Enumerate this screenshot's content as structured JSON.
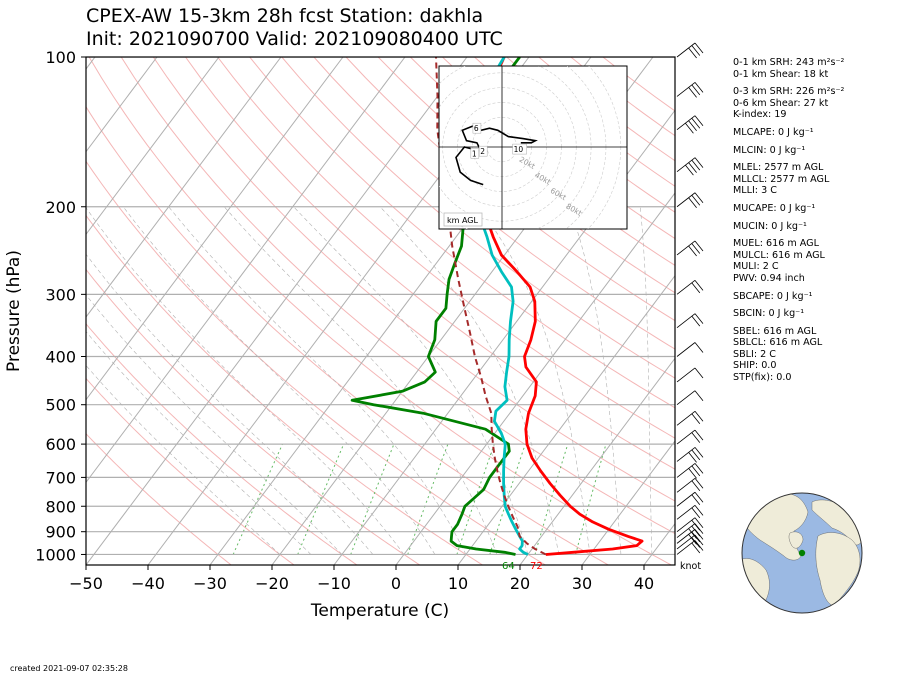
{
  "title_line1": "CPEX-AW 15-3km  28h fcst  Station: dakhla",
  "title_line2": "Init: 2021090700  Valid: 202109080400 UTC",
  "created": "created 2021-09-07 02:35:28",
  "indices": [
    {
      "label": "0-1 km SRH: 243 m²s⁻²",
      "gap": false
    },
    {
      "label": "0-1 km Shear: 18 kt",
      "gap": false
    },
    {
      "label": "0-3 km SRH: 226 m²s⁻²",
      "gap": true
    },
    {
      "label": "0-6 km Shear: 27 kt",
      "gap": false
    },
    {
      "label": "K-index: 19",
      "gap": false
    },
    {
      "label": "MLCAPE: 0 J kg⁻¹",
      "gap": true
    },
    {
      "label": "MLCIN: 0 J kg⁻¹",
      "gap": true
    },
    {
      "label": "MLEL: 2577 m AGL",
      "gap": true
    },
    {
      "label": "MLLCL: 2577 m AGL",
      "gap": false
    },
    {
      "label": "MLLI: 3 C",
      "gap": false
    },
    {
      "label": "MUCAPE: 0 J kg⁻¹",
      "gap": true
    },
    {
      "label": "MUCIN: 0 J kg⁻¹",
      "gap": true
    },
    {
      "label": "MUEL: 616 m AGL",
      "gap": true
    },
    {
      "label": "MULCL: 616 m AGL",
      "gap": false
    },
    {
      "label": "MULI: 2 C",
      "gap": false
    },
    {
      "label": "PWV: 0.94 inch",
      "gap": false
    },
    {
      "label": "SBCAPE: 0 J kg⁻¹",
      "gap": true
    },
    {
      "label": "SBCIN: 0 J kg⁻¹",
      "gap": true
    },
    {
      "label": "SBEL: 616 m AGL",
      "gap": true
    },
    {
      "label": "SBLCL: 616 m AGL",
      "gap": false
    },
    {
      "label": "SBLI: 2 C",
      "gap": false
    },
    {
      "label": "SHIP: 0.0",
      "gap": false
    },
    {
      "label": "STP(fix): 0.0",
      "gap": false
    }
  ],
  "colors": {
    "temperature": "#ff0000",
    "dewpoint": "#008000",
    "wetbulb": "#00bfbf",
    "parcel": "#a52a2a",
    "grid": "#b0b0b0",
    "dry_adiabat": "#f4b6b6",
    "mixing_ratio": "#66bb66",
    "globe_ocean": "#9bb9e3",
    "globe_land": "#efecd9",
    "station": "#008000"
  },
  "chart_data": {
    "type": "line",
    "subtype": "skew-T log-p",
    "xlabel": "Temperature (C)",
    "ylabel": "Pressure (hPa)",
    "xlim": [
      -50,
      45
    ],
    "ylim": [
      1050,
      100
    ],
    "y_scale": "log",
    "xticks": [
      -50,
      -40,
      -30,
      -20,
      -10,
      0,
      10,
      20,
      30,
      40
    ],
    "xtick_labels": [
      "−50",
      "−40",
      "−30",
      "−20",
      "−10",
      "0",
      "10",
      "20",
      "30",
      "40"
    ],
    "yticks": [
      100,
      200,
      300,
      400,
      500,
      600,
      700,
      800,
      900,
      1000
    ],
    "ytick_labels": [
      "100",
      "200",
      "300",
      "400",
      "500",
      "600",
      "700",
      "800",
      "900",
      "1000"
    ],
    "grid": true,
    "surface_temperature_label": "72",
    "surface_dewpoint_label": "64",
    "wind_units_label": "knot",
    "series": [
      {
        "color_key": "temperature",
        "points": [
          [
            1000,
            22.9
          ],
          [
            990,
            27
          ],
          [
            975,
            33
          ],
          [
            960,
            36.5
          ],
          [
            940,
            36.8
          ],
          [
            920,
            34
          ],
          [
            890,
            30
          ],
          [
            860,
            26.5
          ],
          [
            830,
            23.5
          ],
          [
            800,
            21
          ],
          [
            760,
            18
          ],
          [
            720,
            15
          ],
          [
            680,
            12
          ],
          [
            640,
            9
          ],
          [
            600,
            6.5
          ],
          [
            560,
            4.5
          ],
          [
            520,
            3
          ],
          [
            480,
            2
          ],
          [
            450,
            0.5
          ],
          [
            420,
            -3
          ],
          [
            400,
            -4.5
          ],
          [
            370,
            -5.5
          ],
          [
            340,
            -7
          ],
          [
            310,
            -9.5
          ],
          [
            290,
            -12
          ],
          [
            270,
            -16
          ],
          [
            250,
            -20.5
          ],
          [
            230,
            -24
          ],
          [
            210,
            -27.5
          ],
          [
            190,
            -31
          ],
          [
            170,
            -35
          ],
          [
            155,
            -38
          ],
          [
            140,
            -40
          ],
          [
            125,
            -42
          ],
          [
            110,
            -43
          ],
          [
            100,
            -44
          ]
        ]
      },
      {
        "color_key": "dewpoint",
        "points": [
          [
            1000,
            18
          ],
          [
            990,
            16
          ],
          [
            975,
            11
          ],
          [
            960,
            7.5
          ],
          [
            940,
            6
          ],
          [
            920,
            5.5
          ],
          [
            900,
            5
          ],
          [
            870,
            5
          ],
          [
            830,
            4.5
          ],
          [
            800,
            4
          ],
          [
            770,
            4.5
          ],
          [
            740,
            5
          ],
          [
            700,
            4.5
          ],
          [
            660,
            4.5
          ],
          [
            620,
            4.5
          ],
          [
            600,
            3.5
          ],
          [
            560,
            -2
          ],
          [
            520,
            -14
          ],
          [
            500,
            -23
          ],
          [
            490,
            -27
          ],
          [
            470,
            -20
          ],
          [
            450,
            -17.5
          ],
          [
            430,
            -17
          ],
          [
            400,
            -20
          ],
          [
            370,
            -21
          ],
          [
            340,
            -23
          ],
          [
            320,
            -23
          ],
          [
            300,
            -24.5
          ],
          [
            280,
            -26
          ],
          [
            260,
            -27
          ],
          [
            240,
            -28
          ],
          [
            220,
            -30
          ],
          [
            200,
            -33
          ],
          [
            180,
            -35
          ],
          [
            160,
            -38
          ],
          [
            140,
            -40
          ],
          [
            125,
            -42
          ],
          [
            110,
            -41.5
          ],
          [
            100,
            -41.5
          ]
        ]
      },
      {
        "color_key": "wetbulb",
        "points": [
          [
            1000,
            20
          ],
          [
            990,
            19
          ],
          [
            975,
            18
          ],
          [
            960,
            18
          ],
          [
            940,
            17.5
          ],
          [
            920,
            16.5
          ],
          [
            890,
            15
          ],
          [
            860,
            13.5
          ],
          [
            830,
            12
          ],
          [
            800,
            10.5
          ],
          [
            760,
            9
          ],
          [
            720,
            7.5
          ],
          [
            680,
            6
          ],
          [
            640,
            4.5
          ],
          [
            600,
            3
          ],
          [
            570,
            1
          ],
          [
            540,
            -1.5
          ],
          [
            515,
            -2.5
          ],
          [
            490,
            -2
          ],
          [
            460,
            -4
          ],
          [
            430,
            -5.5
          ],
          [
            400,
            -7
          ],
          [
            370,
            -9
          ],
          [
            340,
            -11
          ],
          [
            310,
            -13
          ],
          [
            290,
            -15
          ],
          [
            270,
            -18.5
          ],
          [
            250,
            -22
          ],
          [
            230,
            -25
          ],
          [
            210,
            -28.5
          ],
          [
            190,
            -32
          ],
          [
            170,
            -36
          ],
          [
            155,
            -38.5
          ],
          [
            140,
            -40.5
          ],
          [
            125,
            -42.5
          ],
          [
            110,
            -43.5
          ],
          [
            100,
            -44
          ]
        ]
      },
      {
        "color_key": "parcel",
        "dashed": true,
        "points": [
          [
            1000,
            22.9
          ],
          [
            975,
            20.5
          ],
          [
            950,
            18.5
          ],
          [
            920,
            16.5
          ],
          [
            880,
            15
          ],
          [
            840,
            13
          ],
          [
            800,
            11
          ],
          [
            760,
            9
          ],
          [
            720,
            7
          ],
          [
            680,
            5
          ],
          [
            640,
            3
          ],
          [
            600,
            1
          ],
          [
            560,
            -1
          ],
          [
            520,
            -3
          ],
          [
            480,
            -6
          ],
          [
            440,
            -9
          ],
          [
            400,
            -12.5
          ],
          [
            360,
            -16
          ],
          [
            320,
            -20
          ],
          [
            280,
            -24.5
          ],
          [
            240,
            -29.5
          ],
          [
            200,
            -35
          ],
          [
            170,
            -40
          ],
          [
            140,
            -46
          ],
          [
            120,
            -50
          ],
          [
            100,
            -55
          ]
        ]
      }
    ],
    "wind_profile_kt": [
      [
        1000,
        15
      ],
      [
        975,
        20
      ],
      [
        950,
        25
      ],
      [
        925,
        25
      ],
      [
        900,
        22
      ],
      [
        850,
        18
      ],
      [
        800,
        15
      ],
      [
        750,
        20
      ],
      [
        700,
        25
      ],
      [
        650,
        25
      ],
      [
        600,
        20
      ],
      [
        550,
        15
      ],
      [
        500,
        12
      ],
      [
        450,
        10
      ],
      [
        400,
        10
      ],
      [
        350,
        15
      ],
      [
        300,
        20
      ],
      [
        250,
        25
      ],
      [
        200,
        30
      ],
      [
        170,
        35
      ],
      [
        140,
        35
      ],
      [
        120,
        30
      ],
      [
        100,
        25
      ]
    ]
  },
  "hodograph": {
    "unit_label": "km AGL",
    "ring_labels": [
      "20kt",
      "40kt",
      "60kt",
      "80kt"
    ],
    "height_labels": [
      {
        "text": "1",
        "u": -13,
        "v": -3
      },
      {
        "text": "2",
        "u": -9,
        "v": -2
      },
      {
        "text": "6",
        "u": -12,
        "v": 9
      },
      {
        "text": "10",
        "u": 7,
        "v": -1
      }
    ],
    "trace_uv": [
      [
        -9,
        -18
      ],
      [
        -15,
        -16
      ],
      [
        -20,
        -12
      ],
      [
        -22,
        -5
      ],
      [
        -18,
        0
      ],
      [
        -14,
        -1
      ],
      [
        -10,
        -2
      ],
      [
        -12,
        2
      ],
      [
        -17,
        3
      ],
      [
        -19,
        8
      ],
      [
        -14,
        10
      ],
      [
        -10,
        8
      ],
      [
        -6,
        9
      ],
      [
        -2,
        8
      ],
      [
        3,
        5
      ],
      [
        10,
        4
      ],
      [
        16,
        3
      ],
      [
        14,
        2
      ],
      [
        9,
        2
      ]
    ]
  }
}
